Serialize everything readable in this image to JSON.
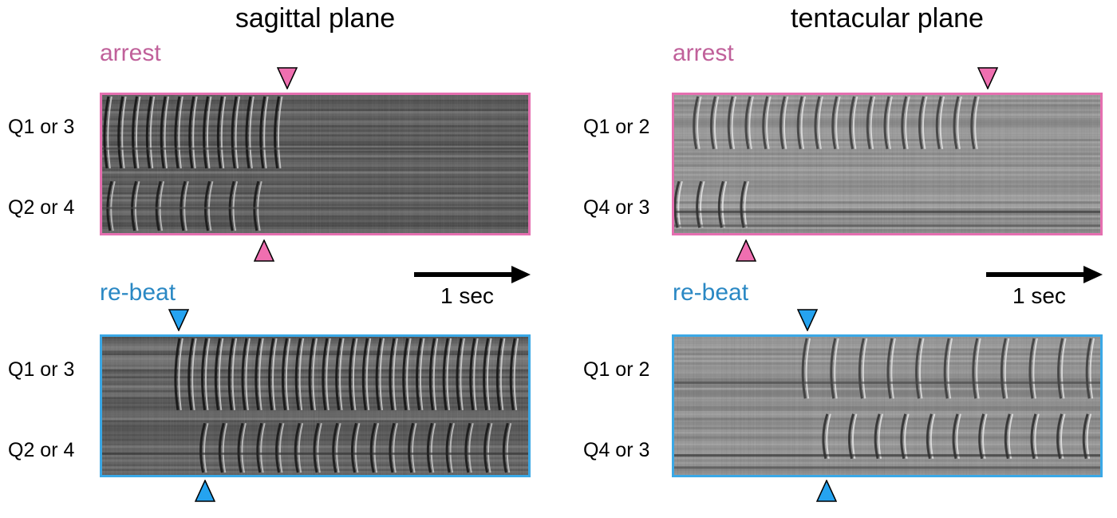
{
  "columns": [
    {
      "title": "sagittal plane",
      "scale_label": "1 sec",
      "blocks": [
        {
          "condition": "arrest",
          "row_labels": [
            "Q1 or 3",
            "Q2 or 4"
          ]
        },
        {
          "condition": "re-beat",
          "row_labels": [
            "Q1 or 3",
            "Q2 or 4"
          ]
        }
      ]
    },
    {
      "title": "tentacular plane",
      "scale_label": "1 sec",
      "blocks": [
        {
          "condition": "arrest",
          "row_labels": [
            "Q1 or 2",
            "Q4 or 3"
          ]
        },
        {
          "condition": "re-beat",
          "row_labels": [
            "Q1 or 2",
            "Q4 or 3"
          ]
        }
      ]
    }
  ],
  "colors": {
    "arrest": "#e56fb0",
    "re_beat": "#3aa8e6",
    "arrest_text": "#c0609a",
    "re_beat_text": "#2a88c4"
  }
}
